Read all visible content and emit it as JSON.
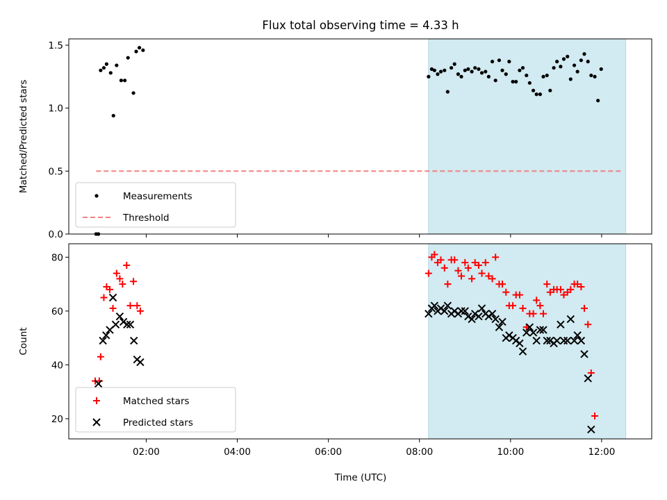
{
  "chart_data": {
    "title": "Flux total observing time = 4.33 h",
    "xlabel": "Time (UTC)",
    "xlim": [
      0.3,
      13.1
    ],
    "xticks": [
      {
        "value": 2,
        "label": "02:00"
      },
      {
        "value": 4,
        "label": "04:00"
      },
      {
        "value": 6,
        "label": "06:00"
      },
      {
        "value": 8,
        "label": "08:00"
      },
      {
        "value": 10,
        "label": "10:00"
      },
      {
        "value": 12,
        "label": "12:00"
      }
    ],
    "shaded_span": {
      "x_start": 8.2,
      "x_end": 12.53,
      "color": "#add8e6"
    },
    "panels": [
      {
        "type": "scatter",
        "ylabel": "Matched/Predicted stars",
        "ylim": [
          0,
          1.55
        ],
        "yticks": [
          "0.0",
          "0.5",
          "1.0",
          "1.5"
        ],
        "ytick_values": [
          0,
          0.5,
          1.0,
          1.5
        ],
        "legend": "lower-left",
        "series": [
          {
            "name": "Measurements",
            "marker": "dot",
            "color": "#000000",
            "points": [
              [
                0.9,
                0
              ],
              [
                0.95,
                0
              ],
              [
                1.0,
                1.3
              ],
              [
                1.07,
                1.32
              ],
              [
                1.13,
                1.35
              ],
              [
                1.22,
                1.28
              ],
              [
                1.28,
                0.94
              ],
              [
                1.35,
                1.34
              ],
              [
                1.45,
                1.22
              ],
              [
                1.53,
                1.22
              ],
              [
                1.6,
                1.4
              ],
              [
                1.72,
                1.12
              ],
              [
                1.78,
                1.45
              ],
              [
                1.85,
                1.48
              ],
              [
                1.93,
                1.46
              ],
              [
                8.2,
                1.25
              ],
              [
                8.27,
                1.31
              ],
              [
                8.33,
                1.3
              ],
              [
                8.4,
                1.27
              ],
              [
                8.47,
                1.29
              ],
              [
                8.55,
                1.3
              ],
              [
                8.62,
                1.13
              ],
              [
                8.7,
                1.32
              ],
              [
                8.77,
                1.35
              ],
              [
                8.85,
                1.27
              ],
              [
                8.92,
                1.25
              ],
              [
                9.0,
                1.3
              ],
              [
                9.07,
                1.31
              ],
              [
                9.15,
                1.29
              ],
              [
                9.22,
                1.32
              ],
              [
                9.3,
                1.31
              ],
              [
                9.37,
                1.28
              ],
              [
                9.45,
                1.29
              ],
              [
                9.52,
                1.25
              ],
              [
                9.6,
                1.37
              ],
              [
                9.67,
                1.22
              ],
              [
                9.75,
                1.38
              ],
              [
                9.82,
                1.3
              ],
              [
                9.9,
                1.27
              ],
              [
                9.97,
                1.37
              ],
              [
                10.05,
                1.21
              ],
              [
                10.12,
                1.21
              ],
              [
                10.2,
                1.3
              ],
              [
                10.27,
                1.32
              ],
              [
                10.35,
                1.26
              ],
              [
                10.42,
                1.2
              ],
              [
                10.5,
                1.14
              ],
              [
                10.57,
                1.11
              ],
              [
                10.65,
                1.11
              ],
              [
                10.72,
                1.25
              ],
              [
                10.8,
                1.26
              ],
              [
                10.87,
                1.14
              ],
              [
                10.95,
                1.32
              ],
              [
                11.02,
                1.37
              ],
              [
                11.1,
                1.33
              ],
              [
                11.17,
                1.39
              ],
              [
                11.25,
                1.41
              ],
              [
                11.32,
                1.23
              ],
              [
                11.4,
                1.34
              ],
              [
                11.47,
                1.29
              ],
              [
                11.55,
                1.38
              ],
              [
                11.62,
                1.43
              ],
              [
                11.7,
                1.37
              ],
              [
                11.77,
                1.26
              ],
              [
                11.85,
                1.25
              ],
              [
                11.92,
                1.06
              ],
              [
                11.99,
                1.31
              ]
            ]
          },
          {
            "name": "Threshold",
            "marker": "dashed-line",
            "color": "#f08080",
            "points": [
              [
                0.9,
                0.5
              ],
              [
                12.45,
                0.5
              ]
            ]
          }
        ]
      },
      {
        "type": "scatter",
        "ylabel": "Count",
        "ylim": [
          12.5,
          85
        ],
        "yticks": [
          "20",
          "40",
          "60",
          "80"
        ],
        "ytick_values": [
          20,
          40,
          60,
          80
        ],
        "legend": "lower-left",
        "series": [
          {
            "name": "Matched stars",
            "marker": "plus",
            "color": "#ff0000",
            "points": [
              [
                0.88,
                34
              ],
              [
                0.97,
                34
              ],
              [
                1.0,
                43
              ],
              [
                1.07,
                65
              ],
              [
                1.13,
                69
              ],
              [
                1.2,
                68
              ],
              [
                1.27,
                61
              ],
              [
                1.35,
                74
              ],
              [
                1.42,
                72
              ],
              [
                1.48,
                70
              ],
              [
                1.57,
                77
              ],
              [
                1.65,
                62
              ],
              [
                1.72,
                71
              ],
              [
                1.8,
                62
              ],
              [
                1.87,
                60
              ],
              [
                8.2,
                74
              ],
              [
                8.27,
                80
              ],
              [
                8.33,
                81
              ],
              [
                8.4,
                78
              ],
              [
                8.47,
                79
              ],
              [
                8.55,
                76
              ],
              [
                8.62,
                70
              ],
              [
                8.7,
                79
              ],
              [
                8.77,
                79
              ],
              [
                8.85,
                75
              ],
              [
                8.92,
                73
              ],
              [
                9.0,
                78
              ],
              [
                9.07,
                76
              ],
              [
                9.15,
                72
              ],
              [
                9.22,
                78
              ],
              [
                9.3,
                77
              ],
              [
                9.37,
                74
              ],
              [
                9.45,
                78
              ],
              [
                9.52,
                73
              ],
              [
                9.6,
                72
              ],
              [
                9.67,
                80
              ],
              [
                9.75,
                70
              ],
              [
                9.82,
                70
              ],
              [
                9.9,
                67
              ],
              [
                9.97,
                62
              ],
              [
                10.05,
                62
              ],
              [
                10.12,
                66
              ],
              [
                10.2,
                66
              ],
              [
                10.27,
                61
              ],
              [
                10.35,
                54
              ],
              [
                10.42,
                59
              ],
              [
                10.5,
                59
              ],
              [
                10.57,
                64
              ],
              [
                10.65,
                62
              ],
              [
                10.72,
                59
              ],
              [
                10.8,
                70
              ],
              [
                10.87,
                67
              ],
              [
                10.95,
                68
              ],
              [
                11.02,
                68
              ],
              [
                11.1,
                68
              ],
              [
                11.17,
                66
              ],
              [
                11.25,
                67
              ],
              [
                11.32,
                68
              ],
              [
                11.4,
                70
              ],
              [
                11.47,
                70
              ],
              [
                11.55,
                69
              ],
              [
                11.62,
                61
              ],
              [
                11.7,
                55
              ],
              [
                11.77,
                37
              ],
              [
                11.85,
                21
              ]
            ]
          },
          {
            "name": "Predicted stars",
            "marker": "x",
            "color": "#000000",
            "points": [
              [
                0.95,
                33
              ],
              [
                1.05,
                49
              ],
              [
                1.12,
                51
              ],
              [
                1.2,
                53
              ],
              [
                1.27,
                65
              ],
              [
                1.33,
                55
              ],
              [
                1.42,
                58
              ],
              [
                1.5,
                56
              ],
              [
                1.58,
                55
              ],
              [
                1.65,
                55
              ],
              [
                1.73,
                49
              ],
              [
                1.8,
                42
              ],
              [
                1.87,
                41
              ],
              [
                8.2,
                59
              ],
              [
                8.27,
                61
              ],
              [
                8.33,
                62
              ],
              [
                8.4,
                60
              ],
              [
                8.47,
                61
              ],
              [
                8.55,
                60
              ],
              [
                8.62,
                62
              ],
              [
                8.7,
                59
              ],
              [
                8.77,
                60
              ],
              [
                8.85,
                59
              ],
              [
                8.92,
                60
              ],
              [
                9.0,
                60
              ],
              [
                9.07,
                58
              ],
              [
                9.15,
                57
              ],
              [
                9.22,
                59
              ],
              [
                9.3,
                58
              ],
              [
                9.37,
                61
              ],
              [
                9.45,
                59
              ],
              [
                9.52,
                58
              ],
              [
                9.6,
                59
              ],
              [
                9.67,
                57
              ],
              [
                9.75,
                54
              ],
              [
                9.82,
                56
              ],
              [
                9.9,
                50
              ],
              [
                9.97,
                51
              ],
              [
                10.05,
                50
              ],
              [
                10.12,
                49
              ],
              [
                10.2,
                48
              ],
              [
                10.27,
                45
              ],
              [
                10.35,
                52
              ],
              [
                10.42,
                54
              ],
              [
                10.5,
                52
              ],
              [
                10.57,
                49
              ],
              [
                10.65,
                53
              ],
              [
                10.72,
                53
              ],
              [
                10.8,
                49
              ],
              [
                10.87,
                49
              ],
              [
                10.95,
                48
              ],
              [
                11.02,
                49
              ],
              [
                11.1,
                55
              ],
              [
                11.17,
                49
              ],
              [
                11.25,
                49
              ],
              [
                11.32,
                57
              ],
              [
                11.4,
                49
              ],
              [
                11.47,
                51
              ],
              [
                11.55,
                49
              ],
              [
                11.62,
                44
              ],
              [
                11.7,
                35
              ],
              [
                11.77,
                16
              ]
            ]
          }
        ]
      }
    ]
  }
}
